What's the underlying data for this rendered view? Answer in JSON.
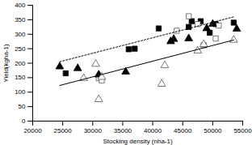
{
  "chart_data": {
    "type": "scatter",
    "x_label": "Stocking density (nha-1)",
    "y_label": "Yield(kgha-1)",
    "xlim": [
      20000,
      55000
    ],
    "xticks": [
      20000,
      25000,
      30000,
      35000,
      40000,
      45000,
      50000,
      55000
    ],
    "ylim": [
      0,
      400
    ],
    "yticks": [
      0,
      50,
      100,
      150,
      200,
      250,
      300,
      350,
      400
    ],
    "grid": false,
    "series": [
      {
        "type": "scatter",
        "marker": "square-filled",
        "color": "#000000",
        "x": [
          25500,
          36000,
          37000,
          41000,
          46000,
          46500,
          48000,
          49500,
          50500,
          53500
        ],
        "values": [
          165,
          248,
          250,
          320,
          325,
          345,
          345,
          305,
          335,
          340
        ]
      },
      {
        "type": "scatter",
        "marker": "square-open",
        "color": "#000000",
        "x": [
          31000,
          31500,
          44000,
          46000,
          47500,
          48500,
          50500,
          51000
        ],
        "values": [
          148,
          140,
          312,
          362,
          335,
          262,
          285,
          330
        ]
      },
      {
        "type": "scatter",
        "marker": "triangle-filled",
        "color": "#000000",
        "x": [
          24500,
          27500,
          31000,
          35500,
          43000,
          43500,
          46000,
          49000,
          50000,
          54000
        ],
        "values": [
          188,
          182,
          160,
          170,
          275,
          283,
          285,
          320,
          335,
          318
        ]
      },
      {
        "type": "scatter",
        "marker": "triangle-open",
        "color": "#000000",
        "x": [
          28500,
          30500,
          31000,
          31500,
          41500,
          42000,
          47500,
          48500,
          53500
        ],
        "values": [
          148,
          197,
          75,
          152,
          128,
          192,
          243,
          265,
          280
        ]
      },
      {
        "type": "line",
        "line_style": "dotted",
        "color": "#000000",
        "x": [
          24500,
          53500
        ],
        "values": [
          205,
          360
        ]
      },
      {
        "type": "line",
        "line_style": "solid",
        "color": "#000000",
        "x": [
          24500,
          53500
        ],
        "values": [
          123,
          280
        ]
      }
    ]
  }
}
